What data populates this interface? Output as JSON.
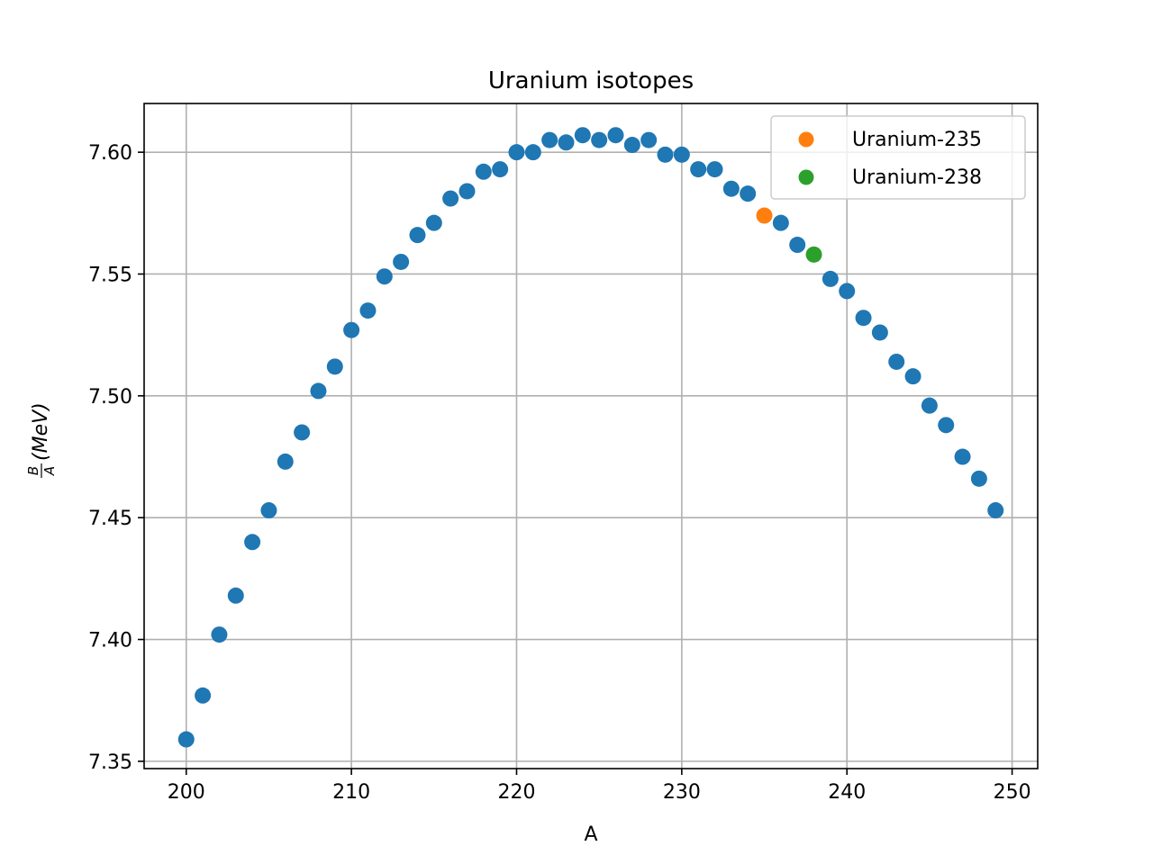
{
  "chart_data": {
    "type": "scatter",
    "title": "Uranium isotopes",
    "xlabel": "A",
    "ylabel": {
      "numerator": "B",
      "denominator": "A",
      "rest": "(MeV)"
    },
    "xlim": [
      197.45,
      251.55
    ],
    "ylim": [
      7.347,
      7.62
    ],
    "xticks": [
      200,
      210,
      220,
      230,
      240,
      250
    ],
    "yticks": [
      7.35,
      7.4,
      7.45,
      7.5,
      7.55,
      7.6
    ],
    "ytick_labels": [
      "7.35",
      "7.40",
      "7.45",
      "7.50",
      "7.55",
      "7.60"
    ],
    "grid": true,
    "legend_position": "top-right",
    "series": [
      {
        "color": "#1f77b4",
        "points": [
          [
            200,
            7.359
          ],
          [
            201,
            7.377
          ],
          [
            202,
            7.402
          ],
          [
            203,
            7.418
          ],
          [
            204,
            7.44
          ],
          [
            205,
            7.453
          ],
          [
            206,
            7.473
          ],
          [
            207,
            7.485
          ],
          [
            208,
            7.502
          ],
          [
            209,
            7.512
          ],
          [
            210,
            7.527
          ],
          [
            211,
            7.535
          ],
          [
            212,
            7.549
          ],
          [
            213,
            7.555
          ],
          [
            214,
            7.566
          ],
          [
            215,
            7.571
          ],
          [
            216,
            7.581
          ],
          [
            217,
            7.584
          ],
          [
            218,
            7.592
          ],
          [
            219,
            7.593
          ],
          [
            220,
            7.6
          ],
          [
            221,
            7.6
          ],
          [
            222,
            7.605
          ],
          [
            223,
            7.604
          ],
          [
            224,
            7.607
          ],
          [
            225,
            7.605
          ],
          [
            226,
            7.607
          ],
          [
            227,
            7.603
          ],
          [
            228,
            7.605
          ],
          [
            229,
            7.599
          ],
          [
            230,
            7.599
          ],
          [
            231,
            7.593
          ],
          [
            232,
            7.593
          ],
          [
            233,
            7.585
          ],
          [
            234,
            7.583
          ],
          [
            236,
            7.571
          ],
          [
            237,
            7.562
          ],
          [
            239,
            7.548
          ],
          [
            240,
            7.543
          ],
          [
            241,
            7.532
          ],
          [
            242,
            7.526
          ],
          [
            243,
            7.514
          ],
          [
            244,
            7.508
          ],
          [
            245,
            7.496
          ],
          [
            246,
            7.488
          ],
          [
            247,
            7.475
          ],
          [
            248,
            7.466
          ],
          [
            249,
            7.453
          ]
        ]
      },
      {
        "name": "Uranium-235",
        "color": "#ff7f0e",
        "points": [
          [
            235,
            7.574
          ]
        ]
      },
      {
        "name": "Uranium-238",
        "color": "#2ca02c",
        "points": [
          [
            238,
            7.558
          ]
        ]
      }
    ]
  }
}
